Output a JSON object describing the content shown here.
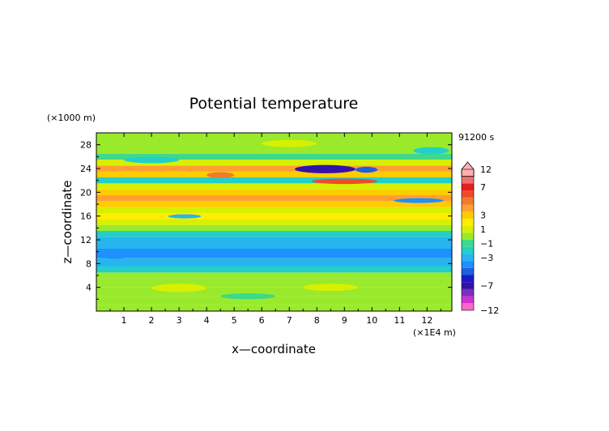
{
  "chart_data": {
    "type": "heatmap",
    "title": "Potential temperature",
    "xlabel": "x—coordinate",
    "ylabel": "z—coordinate",
    "x_unit_label": "(×1E4 m)",
    "y_unit_label": "(×1000 m)",
    "time_label": "91200 s",
    "xlim": [
      0,
      12.9
    ],
    "ylim": [
      0,
      30
    ],
    "x_ticks": [
      1,
      2,
      3,
      4,
      5,
      6,
      7,
      8,
      9,
      10,
      11,
      12
    ],
    "x_tick_labels": [
      "1",
      "2",
      "3",
      "4",
      "5",
      "6",
      "7",
      "8",
      "9",
      "10",
      "11",
      "12"
    ],
    "y_ticks": [
      4,
      8,
      12,
      16,
      20,
      24,
      28
    ],
    "y_tick_labels": [
      "4",
      "8",
      "12",
      "16",
      "20",
      "24",
      "28"
    ],
    "colorbar": {
      "levels": [
        -12,
        -10,
        -8,
        -7,
        -6,
        -5,
        -4,
        -3,
        -2,
        -1,
        0,
        1,
        2,
        3,
        4,
        5,
        6,
        7,
        8,
        10,
        12
      ],
      "labels": [
        {
          "value": 12,
          "text": "12"
        },
        {
          "value": 7,
          "text": "7"
        },
        {
          "value": 3,
          "text": "3"
        },
        {
          "value": 1,
          "text": "1"
        },
        {
          "value": -1,
          "text": "−1"
        },
        {
          "value": -3,
          "text": "−3"
        },
        {
          "value": -7,
          "text": "−7"
        },
        {
          "value": -12,
          "text": "−12"
        }
      ],
      "colors": [
        "#ff66cc",
        "#cc33cc",
        "#7a2fbf",
        "#3311aa",
        "#1a1acc",
        "#1f5fe0",
        "#1e90ff",
        "#28b4ee",
        "#22d0c8",
        "#3ed98a",
        "#9aea2c",
        "#d8f000",
        "#ffee00",
        "#ffcc00",
        "#ffa030",
        "#f07a30",
        "#f04a28",
        "#e61e1e",
        "#f07070",
        "#ffb0b0"
      ]
    },
    "layers": [
      {
        "z_bottom": 0,
        "z_top": 1,
        "value": 0.6
      },
      {
        "z_bottom": 1,
        "z_top": 2.5,
        "value": 0.5
      },
      {
        "z_bottom": 2.5,
        "z_top": 4,
        "value": 0.3
      },
      {
        "z_bottom": 4,
        "z_top": 5.5,
        "value": 0.4
      },
      {
        "z_bottom": 5.5,
        "z_top": 6.5,
        "value": 0.1
      },
      {
        "z_bottom": 6.5,
        "z_top": 7.5,
        "value": -1.3
      },
      {
        "z_bottom": 7.5,
        "z_top": 9,
        "value": -2.6
      },
      {
        "z_bottom": 9,
        "z_top": 10.5,
        "value": -3.2
      },
      {
        "z_bottom": 10.5,
        "z_top": 12.5,
        "value": -2.6
      },
      {
        "z_bottom": 12.5,
        "z_top": 13.5,
        "value": -1.4
      },
      {
        "z_bottom": 13.5,
        "z_top": 14.5,
        "value": 0.5
      },
      {
        "z_bottom": 14.5,
        "z_top": 15.5,
        "value": 1.5
      },
      {
        "z_bottom": 15.5,
        "z_top": 16.5,
        "value": 2.5
      },
      {
        "z_bottom": 16.5,
        "z_top": 17.5,
        "value": 1.2
      },
      {
        "z_bottom": 17.5,
        "z_top": 18.5,
        "value": 3.2
      },
      {
        "z_bottom": 18.5,
        "z_top": 19.5,
        "value": 4.5
      },
      {
        "z_bottom": 19.5,
        "z_top": 20.5,
        "value": 3.0
      },
      {
        "z_bottom": 20.5,
        "z_top": 21.5,
        "value": 1.0
      },
      {
        "z_bottom": 21.5,
        "z_top": 22.5,
        "value": -1.6
      },
      {
        "z_bottom": 22.5,
        "z_top": 23.5,
        "value": 3.6
      },
      {
        "z_bottom": 23.5,
        "z_top": 24.5,
        "value": 4.8
      },
      {
        "z_bottom": 24.5,
        "z_top": 25.5,
        "value": 1.4
      },
      {
        "z_bottom": 25.5,
        "z_top": 26.5,
        "value": -0.6
      },
      {
        "z_bottom": 26.5,
        "z_top": 30,
        "value": 0.2
      }
    ],
    "anomalies": [
      {
        "x": [
          7.2,
          9.4
        ],
        "z": [
          23.2,
          24.6
        ],
        "value": -6.5
      },
      {
        "x": [
          9.4,
          10.2
        ],
        "z": [
          23.3,
          24.3
        ],
        "value": -4.2
      },
      {
        "x": [
          7.8,
          10.2
        ],
        "z": [
          21.4,
          22.3
        ],
        "value": 6.5
      },
      {
        "x": [
          4.0,
          5.0
        ],
        "z": [
          22.4,
          23.4
        ],
        "value": 5.2
      },
      {
        "x": [
          10.8,
          12.6
        ],
        "z": [
          18.2,
          19.0
        ],
        "value": -3.5
      },
      {
        "x": [
          2.6,
          3.8
        ],
        "z": [
          15.6,
          16.3
        ],
        "value": -2.5
      },
      {
        "x": [
          0.1,
          1.2
        ],
        "z": [
          8.8,
          10.0
        ],
        "value": -4.0
      },
      {
        "x": [
          11.2,
          12.8
        ],
        "z": [
          9.0,
          10.2
        ],
        "value": -4.0
      },
      {
        "x": [
          2.0,
          4.0
        ],
        "z": [
          3.2,
          4.6
        ],
        "value": 1.3
      },
      {
        "x": [
          7.5,
          9.5
        ],
        "z": [
          3.4,
          4.6
        ],
        "value": 1.3
      },
      {
        "x": [
          4.5,
          6.5
        ],
        "z": [
          2.0,
          3.0
        ],
        "value": -0.8
      },
      {
        "x": [
          1.0,
          3.0
        ],
        "z": [
          24.9,
          26.0
        ],
        "value": -1.6
      },
      {
        "x": [
          6.0,
          8.0
        ],
        "z": [
          27.6,
          28.8
        ],
        "value": 1.4
      },
      {
        "x": [
          11.5,
          12.8
        ],
        "z": [
          26.4,
          27.6
        ],
        "value": -1.4
      }
    ]
  }
}
